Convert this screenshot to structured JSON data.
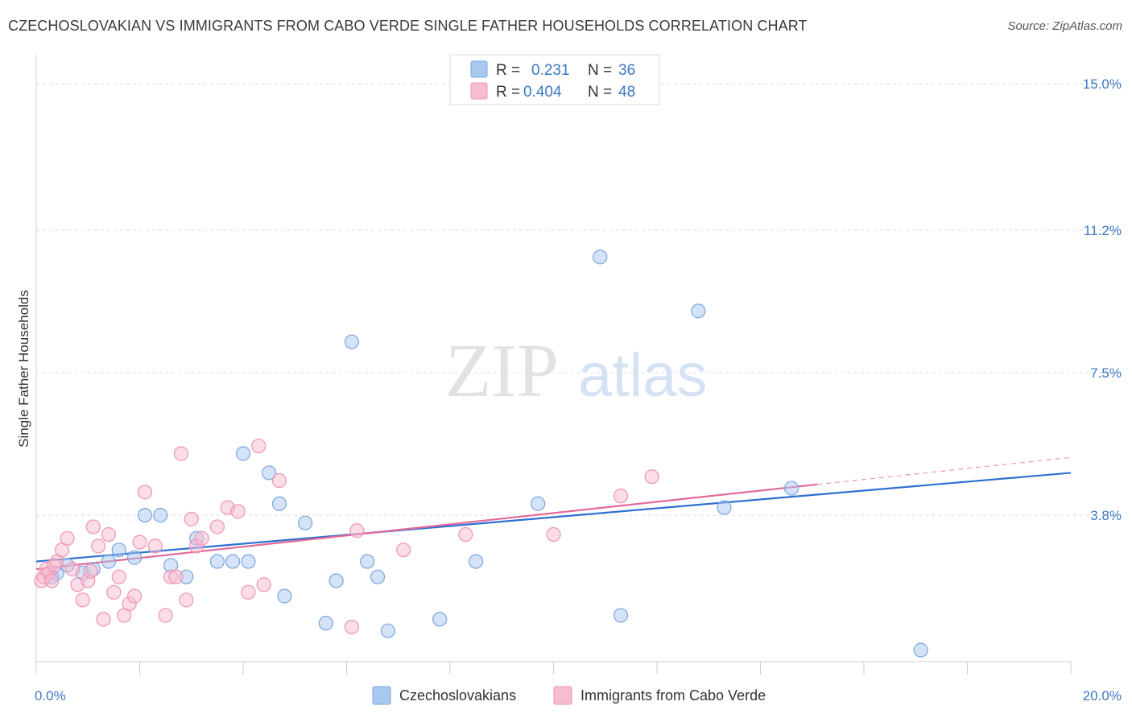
{
  "title": "CZECHOSLOVAKIAN VS IMMIGRANTS FROM CABO VERDE SINGLE FATHER HOUSEHOLDS CORRELATION CHART",
  "source": "Source: ZipAtlas.com",
  "watermark": {
    "zip": "ZIP",
    "atlas": "atlas"
  },
  "chart_data": {
    "type": "scatter",
    "xlabel": "",
    "ylabel": "Single Father Households",
    "xlim": [
      0,
      20
    ],
    "ylim": [
      0,
      15.5
    ],
    "x_tick_labels": [
      {
        "value": 0,
        "label": "0.0%"
      },
      {
        "value": 20,
        "label": "20.0%"
      }
    ],
    "y_tick_labels": [
      {
        "value": 3.8,
        "label": "3.8%"
      },
      {
        "value": 7.5,
        "label": "7.5%"
      },
      {
        "value": 11.2,
        "label": "11.2%"
      },
      {
        "value": 15.0,
        "label": "15.0%"
      }
    ],
    "grid": true,
    "legend_placement": "top-center",
    "legend": [
      {
        "r_label": "R = ",
        "r_value": "0.231",
        "n_label": "N = ",
        "n_value": "36"
      },
      {
        "r_label": "R = ",
        "r_value": "0.404",
        "n_label": "N = ",
        "n_value": "48"
      }
    ],
    "series": [
      {
        "name": "Czechoslovakians",
        "color": "#a9c8f0",
        "stroke": "#7aa6dd",
        "line_color": "#2f6fd1",
        "trend": {
          "x0": 0,
          "y0": 2.6,
          "x1": 20,
          "y1": 4.9
        },
        "points": [
          [
            0.3,
            2.2
          ],
          [
            0.4,
            2.3
          ],
          [
            0.6,
            2.5
          ],
          [
            0.9,
            2.3
          ],
          [
            1.1,
            2.4
          ],
          [
            1.4,
            2.6
          ],
          [
            1.6,
            2.9
          ],
          [
            1.9,
            2.7
          ],
          [
            2.1,
            3.8
          ],
          [
            2.4,
            3.8
          ],
          [
            2.6,
            2.5
          ],
          [
            2.9,
            2.2
          ],
          [
            3.1,
            3.2
          ],
          [
            3.5,
            2.6
          ],
          [
            3.8,
            2.6
          ],
          [
            4.0,
            5.4
          ],
          [
            4.1,
            2.6
          ],
          [
            4.5,
            4.9
          ],
          [
            4.7,
            4.1
          ],
          [
            4.8,
            1.7
          ],
          [
            5.2,
            3.6
          ],
          [
            5.6,
            1.0
          ],
          [
            5.8,
            2.1
          ],
          [
            6.1,
            8.3
          ],
          [
            6.4,
            2.6
          ],
          [
            6.6,
            2.2
          ],
          [
            6.8,
            0.8
          ],
          [
            7.8,
            1.1
          ],
          [
            8.5,
            2.6
          ],
          [
            9.7,
            4.1
          ],
          [
            10.9,
            10.5
          ],
          [
            11.3,
            1.2
          ],
          [
            12.8,
            9.1
          ],
          [
            13.3,
            4.0
          ],
          [
            14.6,
            4.5
          ],
          [
            17.1,
            0.3
          ]
        ]
      },
      {
        "name": "Immigrants from Cabo Verde",
        "color": "#f7bcd0",
        "stroke": "#ee94b3",
        "line_color": "#e26a9a",
        "trend": {
          "x0": 0,
          "y0": 2.4,
          "x1": 15.1,
          "y1": 4.6
        },
        "trend_dashed": {
          "x0": 15.1,
          "y0": 4.6,
          "x1": 20,
          "y1": 5.3
        },
        "points": [
          [
            0.1,
            2.1
          ],
          [
            0.15,
            2.2
          ],
          [
            0.2,
            2.4
          ],
          [
            0.25,
            2.3
          ],
          [
            0.3,
            2.1
          ],
          [
            0.4,
            2.6
          ],
          [
            0.5,
            2.9
          ],
          [
            0.6,
            3.2
          ],
          [
            0.7,
            2.4
          ],
          [
            0.8,
            2.0
          ],
          [
            0.9,
            1.6
          ],
          [
            1.0,
            2.1
          ],
          [
            1.1,
            3.5
          ],
          [
            1.2,
            3.0
          ],
          [
            1.3,
            1.1
          ],
          [
            1.4,
            3.3
          ],
          [
            1.5,
            1.8
          ],
          [
            1.6,
            2.2
          ],
          [
            1.7,
            1.2
          ],
          [
            1.8,
            1.5
          ],
          [
            1.9,
            1.7
          ],
          [
            2.0,
            3.1
          ],
          [
            2.1,
            4.4
          ],
          [
            2.3,
            3.0
          ],
          [
            2.5,
            1.2
          ],
          [
            2.6,
            2.2
          ],
          [
            2.7,
            2.2
          ],
          [
            2.8,
            5.4
          ],
          [
            2.9,
            1.6
          ],
          [
            3.0,
            3.7
          ],
          [
            3.1,
            3.0
          ],
          [
            3.2,
            3.2
          ],
          [
            3.5,
            3.5
          ],
          [
            3.7,
            4.0
          ],
          [
            3.9,
            3.9
          ],
          [
            4.1,
            1.8
          ],
          [
            4.3,
            5.6
          ],
          [
            4.4,
            2.0
          ],
          [
            4.7,
            4.7
          ],
          [
            6.1,
            0.9
          ],
          [
            6.2,
            3.4
          ],
          [
            7.1,
            2.9
          ],
          [
            8.3,
            3.3
          ],
          [
            10.0,
            3.3
          ],
          [
            11.3,
            4.3
          ],
          [
            11.9,
            4.8
          ],
          [
            0.35,
            2.5
          ],
          [
            1.05,
            2.35
          ]
        ]
      }
    ]
  }
}
